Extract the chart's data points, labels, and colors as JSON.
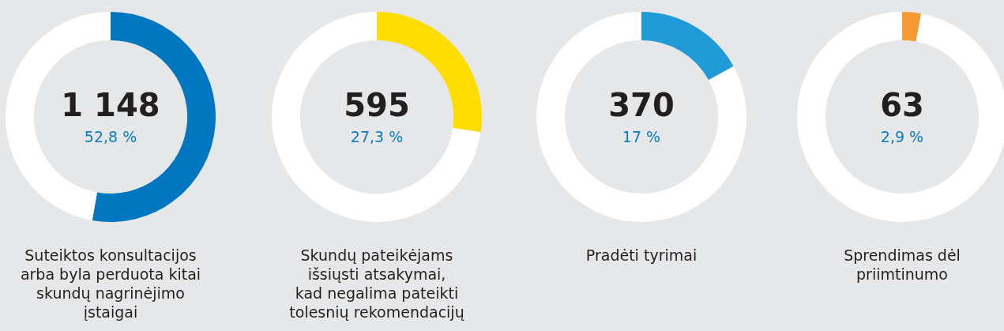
{
  "chart_data": [
    {
      "type": "donut",
      "title": "Suteiktos konsultacijos\narba byla perduota kitai\nskundų nagrinėjimo\nįstaigai",
      "categories": [
        null,
        null
      ],
      "values": [
        52.8,
        47.2
      ],
      "colors": [
        "#0077c0",
        "#ffffff"
      ],
      "annotations": [
        "1 148",
        "52,8 %"
      ]
    },
    {
      "type": "donut",
      "title": "Skundų pateikėjams\nišsiųsti atsakymai,\nkad negalima pateikti\ntolesnių rekomendacijų",
      "categories": [
        null,
        null
      ],
      "values": [
        27.3,
        72.7
      ],
      "colors": [
        "#ffdd00",
        "#ffffff"
      ],
      "annotations": [
        "595",
        "27,3 %"
      ]
    },
    {
      "type": "donut",
      "title": "Pradėti tyrimai",
      "categories": [
        null,
        null
      ],
      "values": [
        17,
        83
      ],
      "colors": [
        "#219bd8",
        "#ffffff"
      ],
      "annotations": [
        "370",
        "17 %"
      ]
    },
    {
      "type": "donut",
      "title": "Sprendimas dėl\npriimtinumo",
      "categories": [
        null,
        null
      ],
      "values": [
        2.9,
        97.1
      ],
      "colors": [
        "#f59b33",
        "#ffffff"
      ],
      "annotations": [
        "63",
        "2,9 %"
      ]
    }
  ]
}
